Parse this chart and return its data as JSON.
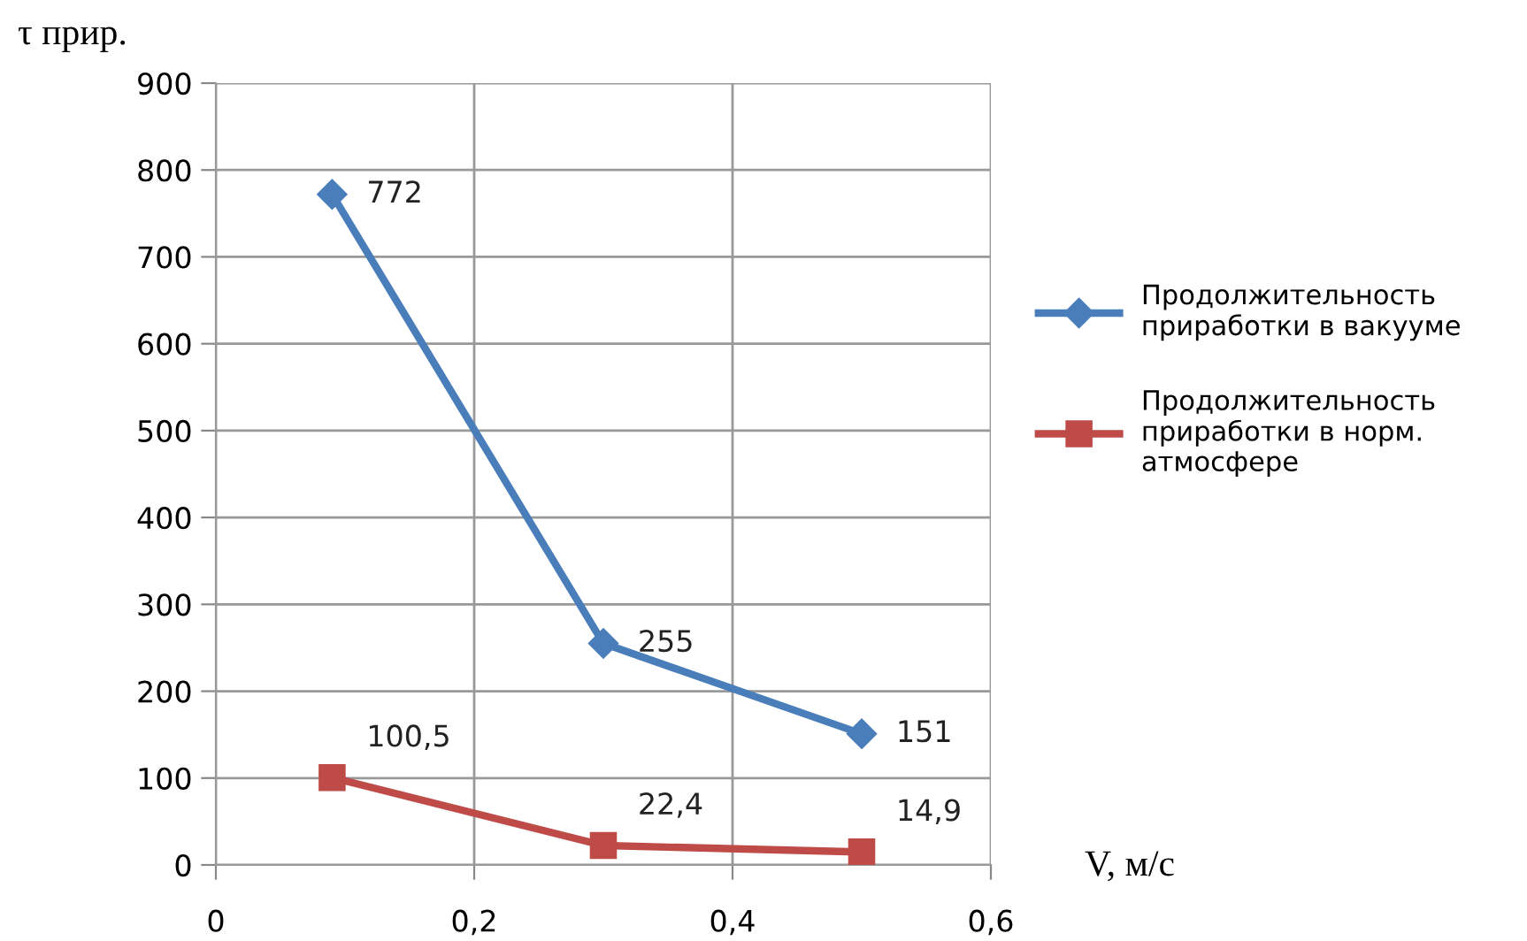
{
  "chart_data": {
    "type": "line",
    "xlabel": "V, м/с",
    "ylabel": "τ прир.",
    "x": [
      0.09,
      0.3,
      0.5
    ],
    "series": [
      {
        "name": "Продолжительность\nприработки в вакууме",
        "color": "#4a7ebb",
        "marker": "diamond",
        "values": [
          772,
          255,
          151
        ],
        "value_labels": [
          "772",
          "255",
          "151"
        ]
      },
      {
        "name": "Продолжительность\nприработки в норм.\nатмосфере",
        "color": "#be4b48",
        "marker": "square",
        "values": [
          100.5,
          22.4,
          14.9
        ],
        "value_labels": [
          "100,5",
          "22,4",
          "14,9"
        ]
      }
    ],
    "xlim": [
      0,
      0.6
    ],
    "xticks": [
      0,
      {
        "value": 0.2,
        "label": "0,2"
      },
      {
        "value": 0.4,
        "label": "0,4"
      },
      {
        "value": 0.6,
        "label": "0,6"
      }
    ],
    "ylim": [
      0,
      900
    ],
    "yticks": [
      0,
      100,
      200,
      300,
      400,
      500,
      600,
      700,
      800,
      900
    ],
    "grid": true,
    "legend": "right"
  }
}
